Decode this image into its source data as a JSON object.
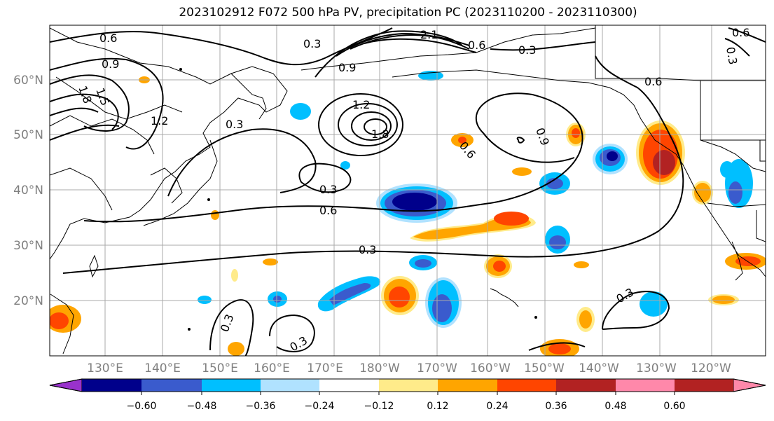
{
  "title": "2023102912 F072 500 hPa PV, precipitation PC (2023110200 - 2023110300)",
  "lon_labels": [
    "130°E",
    "140°E",
    "150°E",
    "160°E",
    "170°E",
    "180°W",
    "170°W",
    "160°W",
    "150°W",
    "140°W",
    "130°W",
    "120°W"
  ],
  "lat_labels": [
    "60°N",
    "50°N",
    "40°N",
    "30°N",
    "20°N"
  ],
  "colorbar": {
    "colors": [
      "#9932cc",
      "#00008b",
      "#3a5bcd",
      "#00bfff",
      "#b0e2ff",
      "#ffffff",
      "#ffeb8a",
      "#ffa500",
      "#ff4500",
      "#b22222",
      "#ff88aa"
    ],
    "tick_labels": [
      "−0.60",
      "−0.48",
      "−0.36",
      "−0.24",
      "−0.12",
      "0.12",
      "0.24",
      "0.36",
      "0.48",
      "0.60"
    ]
  },
  "contour_labels": [
    "0.6",
    "0.3",
    "0.9",
    "1.8",
    "1.5",
    "1.2",
    "0.3",
    "2.1",
    "0.6",
    "0.3",
    "0.9",
    "1.2",
    "1.8",
    "0.3",
    "0.6",
    "0.3",
    "0.6",
    "0.9",
    "0.6",
    "0.3",
    "0.3",
    "0.3",
    "0.6",
    "0.3"
  ]
}
